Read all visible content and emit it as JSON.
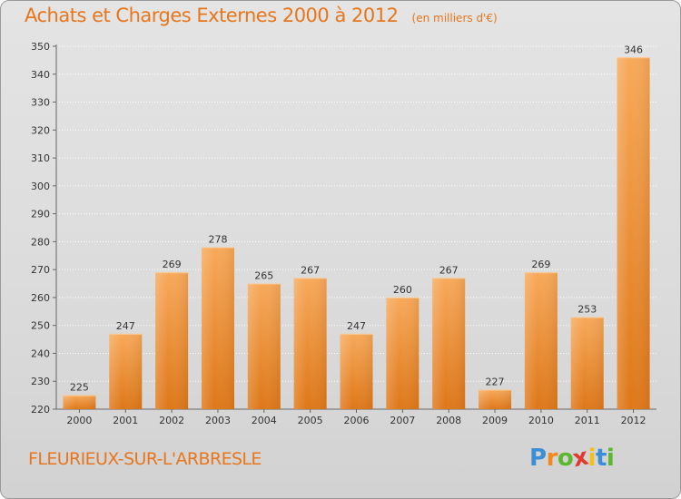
{
  "title": "Achats et Charges Externes 2000 à 2012",
  "subtitle": "(en milliers d'€)",
  "commune": "FLEURIEUX-SUR-L'ARBRESLE",
  "logo": {
    "letters": [
      "P",
      "r",
      "o",
      "x",
      "i",
      "t",
      "i"
    ],
    "colors": [
      "#3a8fd6",
      "#f08a1e",
      "#5cb82e",
      "#e23b2e",
      "#f2c01e",
      "#3a8fd6",
      "#5cb82e"
    ]
  },
  "colors": {
    "bar_light": "#f7a95a",
    "bar_dark": "#de7718",
    "accent": "#e8761c"
  },
  "chart_data": {
    "type": "bar",
    "categories": [
      "2000",
      "2001",
      "2002",
      "2003",
      "2004",
      "2005",
      "2006",
      "2007",
      "2008",
      "2009",
      "2010",
      "2011",
      "2012"
    ],
    "values": [
      225,
      247,
      269,
      278,
      265,
      267,
      247,
      260,
      267,
      227,
      269,
      253,
      346
    ],
    "ylim": [
      220,
      350
    ],
    "yticks": [
      220,
      230,
      240,
      250,
      260,
      270,
      280,
      290,
      300,
      310,
      320,
      330,
      340,
      350
    ],
    "grid": true,
    "xlabel": "",
    "ylabel": ""
  }
}
